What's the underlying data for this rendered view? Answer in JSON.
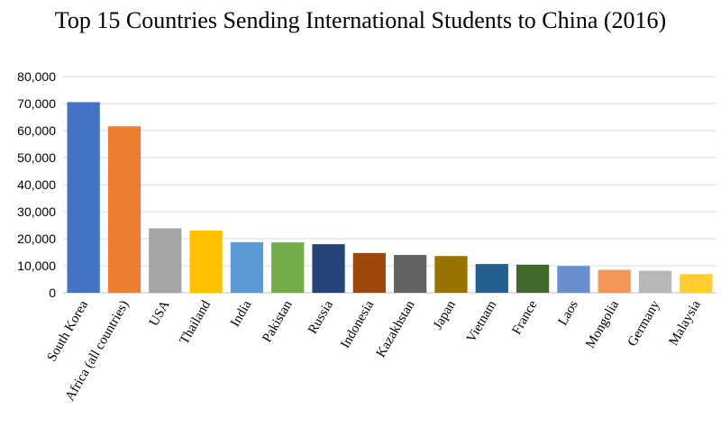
{
  "chart_data": {
    "type": "bar",
    "title": "Top 15 Countries Sending International Students to China (2016)",
    "xlabel": "",
    "ylabel": "",
    "ylim": [
      0,
      80000
    ],
    "yticks": [
      "0",
      "10,000",
      "20,000",
      "30,000",
      "40,000",
      "50,000",
      "60,000",
      "70,000",
      "80,000"
    ],
    "grid": true,
    "legend": "none",
    "categories": [
      "South Korea",
      "Africa (all countries)",
      "USA",
      "Thailand",
      "India",
      "Pakistan",
      "Russia",
      "Indonesia",
      "Kazakhstan",
      "Japan",
      "Vietnam",
      "France",
      "Laos",
      "Mongolia",
      "Germany",
      "Malaysia"
    ],
    "values": [
      70540,
      61594,
      23838,
      23044,
      18717,
      18626,
      17971,
      14714,
      13996,
      13595,
      10639,
      10414,
      9907,
      8508,
      8145,
      6880
    ],
    "colors": [
      "#4472C4",
      "#ED7D31",
      "#A5A5A5",
      "#FFC000",
      "#5B9BD5",
      "#70AD47",
      "#264478",
      "#9E480E",
      "#636363",
      "#997300",
      "#255E91",
      "#43682B",
      "#698ED0",
      "#F1975A",
      "#B7B7B7",
      "#FFCD33"
    ]
  }
}
